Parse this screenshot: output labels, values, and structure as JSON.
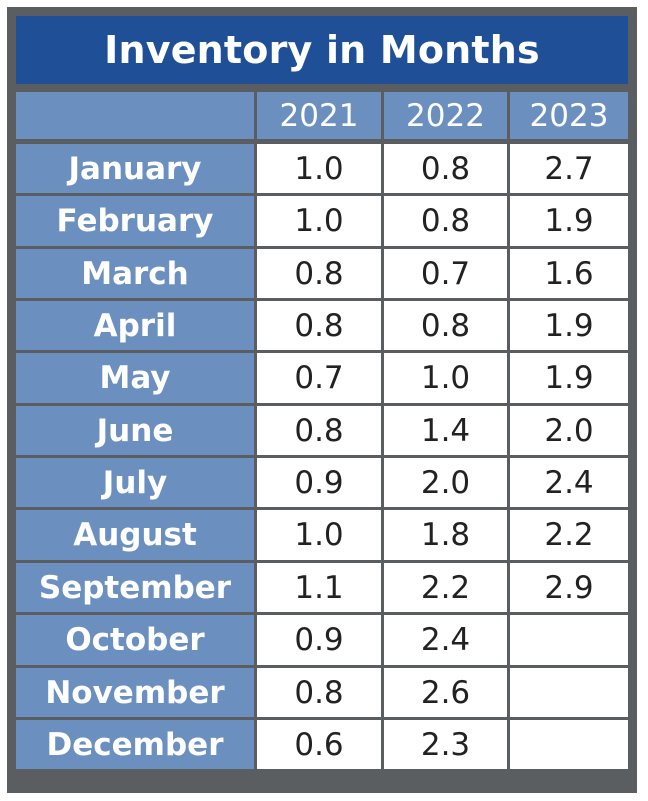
{
  "chart_data": {
    "type": "table",
    "title": "Inventory in Months",
    "columns": [
      "2021",
      "2022",
      "2023"
    ],
    "rows": [
      {
        "label": "January",
        "values": [
          "1.0",
          "0.8",
          "2.7"
        ]
      },
      {
        "label": "February",
        "values": [
          "1.0",
          "0.8",
          "1.9"
        ]
      },
      {
        "label": "March",
        "values": [
          "0.8",
          "0.7",
          "1.6"
        ]
      },
      {
        "label": "April",
        "values": [
          "0.8",
          "0.8",
          "1.9"
        ]
      },
      {
        "label": "May",
        "values": [
          "0.7",
          "1.0",
          "1.9"
        ]
      },
      {
        "label": "June",
        "values": [
          "0.8",
          "1.4",
          "2.0"
        ]
      },
      {
        "label": "July",
        "values": [
          "0.9",
          "2.0",
          "2.4"
        ]
      },
      {
        "label": "August",
        "values": [
          "1.0",
          "1.8",
          "2.2"
        ]
      },
      {
        "label": "September",
        "values": [
          "1.1",
          "2.2",
          "2.9"
        ]
      },
      {
        "label": "October",
        "values": [
          "0.9",
          "2.4",
          ""
        ]
      },
      {
        "label": "November",
        "values": [
          "0.8",
          "2.6",
          ""
        ]
      },
      {
        "label": "December",
        "values": [
          "0.6",
          "2.3",
          ""
        ]
      }
    ]
  },
  "colors": {
    "title_bg": "#1f4f96",
    "header_bg": "#6b90c0",
    "frame": "#5b5e61",
    "cell_bg": "#ffffff"
  }
}
